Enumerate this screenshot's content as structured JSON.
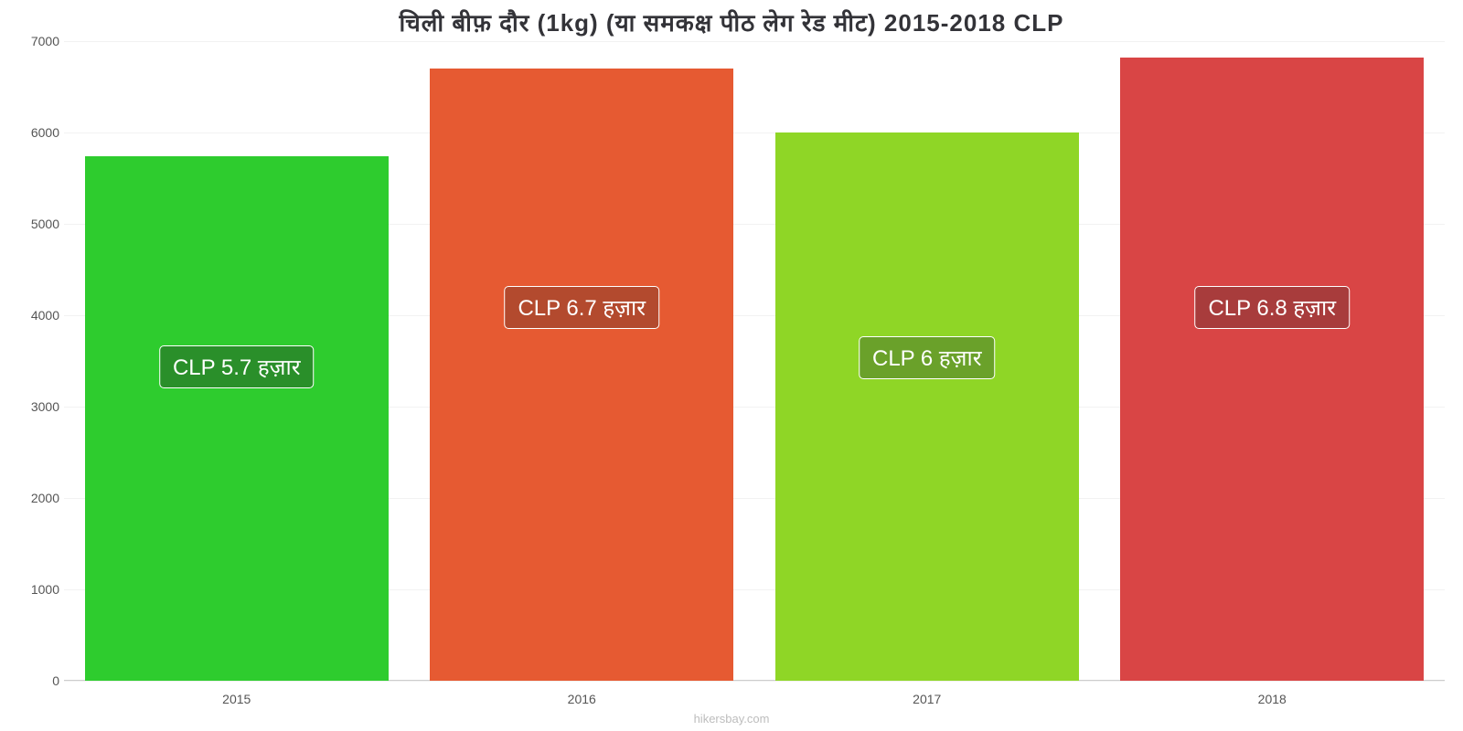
{
  "chart": {
    "type": "bar",
    "title": "चिली बीफ़ दौर (1kg) (या समकक्ष पीठ लेग रेड मीट) 2015-2018 CLP",
    "title_fontsize": 26,
    "background_color": "#ffffff",
    "grid_color": "#f2f2f2",
    "baseline_color": "#cccccc",
    "ylim": [
      0,
      7000
    ],
    "ytick_step": 1000,
    "yticks": [
      0,
      1000,
      2000,
      3000,
      4000,
      5000,
      6000,
      7000
    ],
    "categories": [
      "2015",
      "2016",
      "2017",
      "2018"
    ],
    "values": [
      5740,
      6700,
      6000,
      6820
    ],
    "bar_colors": [
      "#2ecc2e",
      "#e65a32",
      "#8fd626",
      "#d94545"
    ],
    "value_labels": [
      "CLP 5.7 हज़ार",
      "CLP 6.7 हज़ार",
      "CLP 6 हज़ार",
      "CLP 6.8 हज़ार"
    ],
    "badge_bg_colors": [
      "#2a8f2a",
      "#b34a2e",
      "#6aa12a",
      "#a83c3c"
    ],
    "badge_text_color": "#ffffff",
    "badge_border_color": "#ffffff",
    "badge_y_values": [
      3200,
      3850,
      3300,
      3850
    ],
    "label_fontsize": 14,
    "bar_width_pct": 88,
    "axis_text_color": "#555555",
    "attribution": "hikersbay.com"
  }
}
